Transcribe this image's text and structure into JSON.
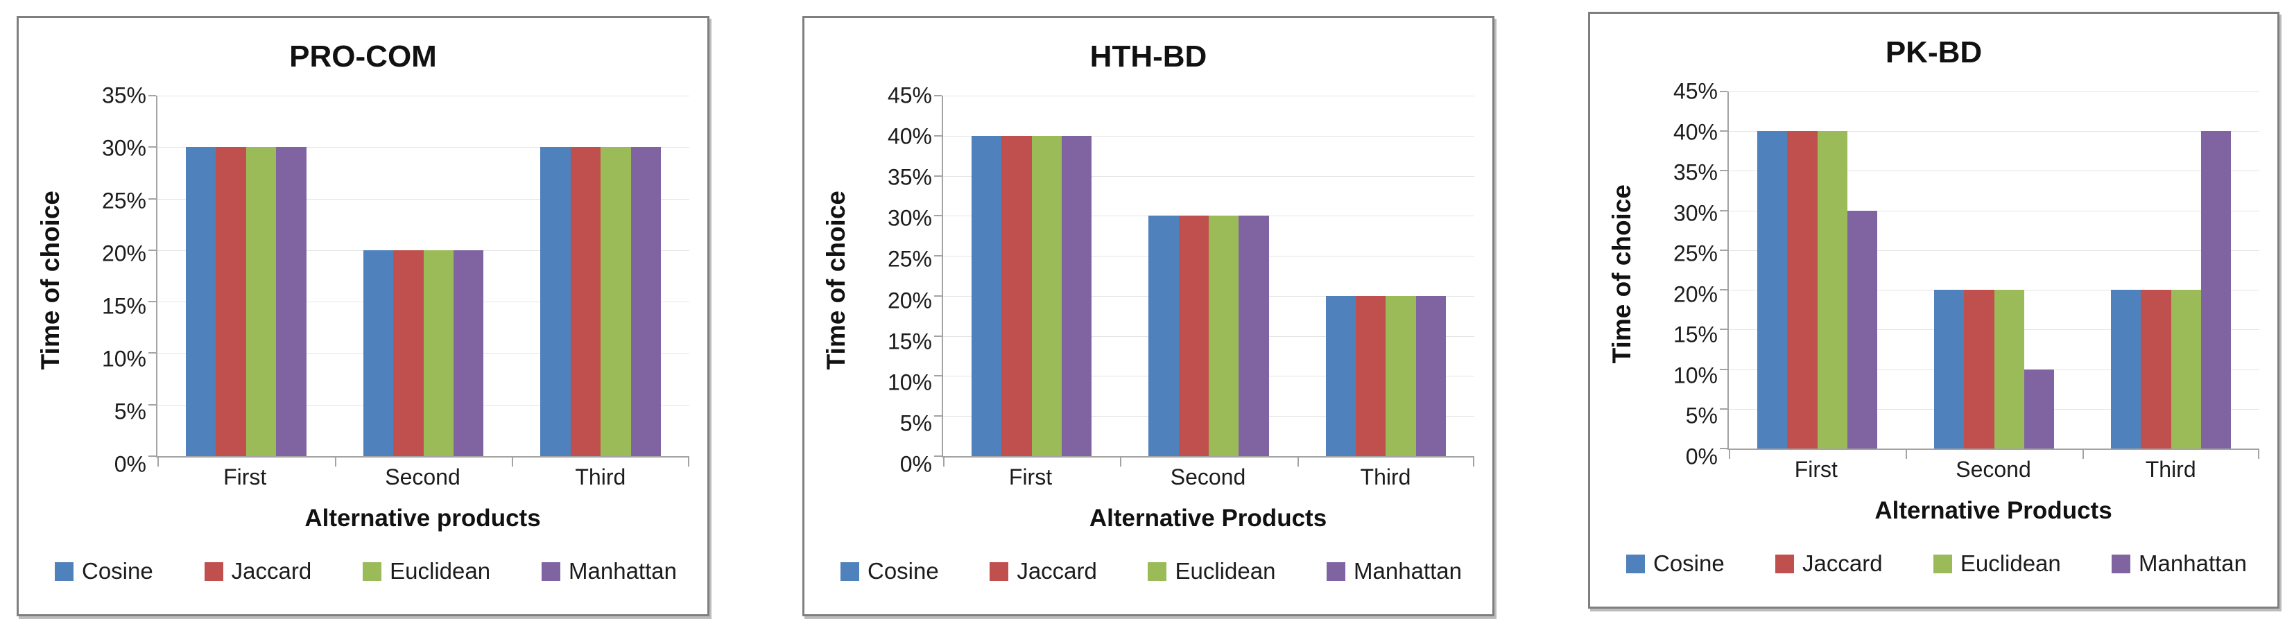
{
  "chart_data": [
    {
      "type": "bar",
      "title": "PRO-COM",
      "xlabel": "Alternative products",
      "ylabel": "Time of choice",
      "categories": [
        "First",
        "Second",
        "Third"
      ],
      "series": [
        {
          "name": "Cosine",
          "color": "#4F81BD",
          "values": [
            30,
            20,
            30
          ]
        },
        {
          "name": "Jaccard",
          "color": "#C0504D",
          "values": [
            30,
            20,
            30
          ]
        },
        {
          "name": "Euclidean",
          "color": "#9BBB59",
          "values": [
            30,
            20,
            30
          ]
        },
        {
          "name": "Manhattan",
          "color": "#8064A2",
          "values": [
            30,
            20,
            30
          ]
        }
      ],
      "ylim": [
        0,
        35
      ],
      "ytick_step": 5,
      "ytick_suffix": "%",
      "grid": true,
      "legend_position": "bottom"
    },
    {
      "type": "bar",
      "title": "HTH-BD",
      "xlabel": "Alternative Products",
      "ylabel": "Time of choice",
      "categories": [
        "First",
        "Second",
        "Third"
      ],
      "series": [
        {
          "name": "Cosine",
          "color": "#4F81BD",
          "values": [
            40,
            30,
            20
          ]
        },
        {
          "name": "Jaccard",
          "color": "#C0504D",
          "values": [
            40,
            30,
            20
          ]
        },
        {
          "name": "Euclidean",
          "color": "#9BBB59",
          "values": [
            40,
            30,
            20
          ]
        },
        {
          "name": "Manhattan",
          "color": "#8064A2",
          "values": [
            40,
            30,
            20
          ]
        }
      ],
      "ylim": [
        0,
        45
      ],
      "ytick_step": 5,
      "ytick_suffix": "%",
      "grid": true,
      "legend_position": "bottom"
    },
    {
      "type": "bar",
      "title": "PK-BD",
      "xlabel": "Alternative Products",
      "ylabel": "Time of choice",
      "categories": [
        "First",
        "Second",
        "Third"
      ],
      "series": [
        {
          "name": "Cosine",
          "color": "#4F81BD",
          "values": [
            40,
            20,
            20
          ]
        },
        {
          "name": "Jaccard",
          "color": "#C0504D",
          "values": [
            40,
            20,
            20
          ]
        },
        {
          "name": "Euclidean",
          "color": "#9BBB59",
          "values": [
            40,
            20,
            20
          ]
        },
        {
          "name": "Manhattan",
          "color": "#8064A2",
          "values": [
            30,
            10,
            40
          ]
        }
      ],
      "ylim": [
        0,
        45
      ],
      "ytick_step": 5,
      "ytick_suffix": "%",
      "grid": true,
      "legend_position": "bottom"
    }
  ]
}
